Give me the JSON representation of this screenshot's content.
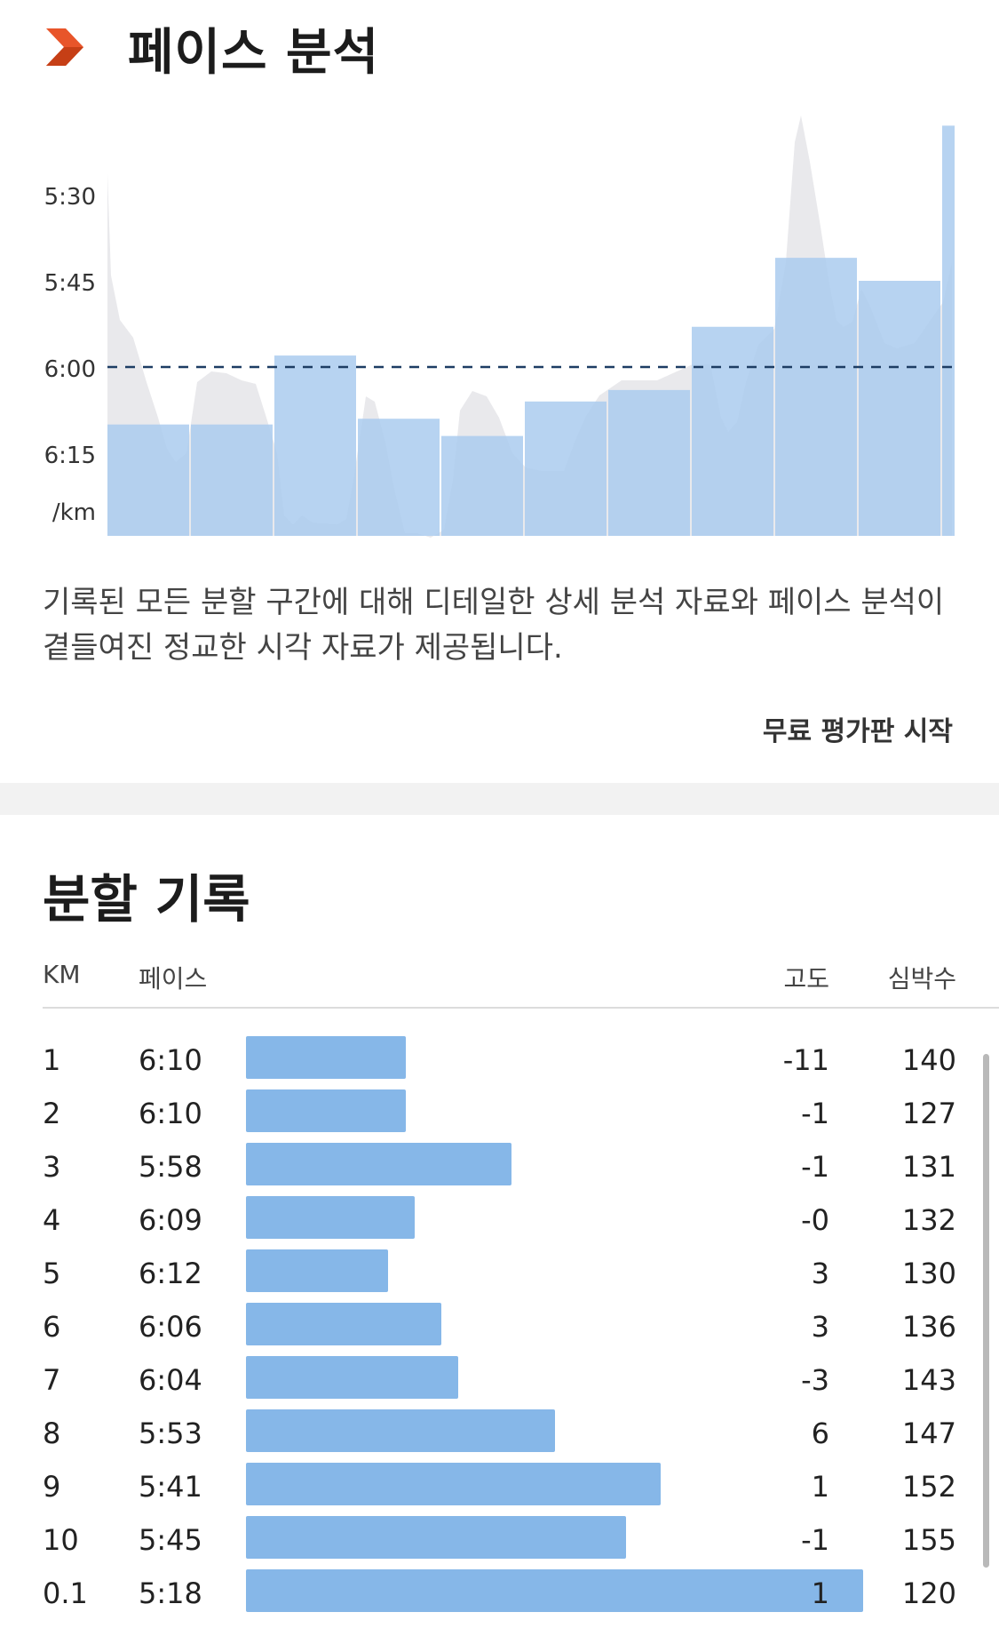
{
  "header": {
    "title": "페이스 분석",
    "brand_color": "#e8552a"
  },
  "chart_data": {
    "type": "bar",
    "ylabel": "/km",
    "y_ticks": [
      "5:30",
      "5:45",
      "6:00",
      "6:15"
    ],
    "ylim_seconds": [
      320,
      395
    ],
    "reference_line": {
      "label": "6:00",
      "seconds": 360
    },
    "categories": [
      "1",
      "2",
      "3",
      "4",
      "5",
      "6",
      "7",
      "8",
      "9",
      "10",
      "0.1"
    ],
    "pace_seconds": [
      370,
      370,
      358,
      369,
      372,
      366,
      364,
      353,
      341,
      345,
      318
    ],
    "bar_color": "#aacbef",
    "elevation_area_color": "#e9e9ec"
  },
  "description": "기록된 모든 분할 구간에 대해 디테일한 상세 분석 자료와 페이스 분석이 곁들여진 정교한 시각 자료가 제공됩니다.",
  "trial_link": "무료 평가판 시작",
  "splits": {
    "title": "분할 기록",
    "headers": {
      "km": "KM",
      "pace": "페이스",
      "elevation": "고도",
      "heart_rate": "심박수"
    },
    "bar_color": "#86b7e8",
    "rows": [
      {
        "km": "1",
        "pace": "6:10",
        "pace_seconds": 370,
        "elev": "-11",
        "hr": "140"
      },
      {
        "km": "2",
        "pace": "6:10",
        "pace_seconds": 370,
        "elev": "-1",
        "hr": "127"
      },
      {
        "km": "3",
        "pace": "5:58",
        "pace_seconds": 358,
        "elev": "-1",
        "hr": "131"
      },
      {
        "km": "4",
        "pace": "6:09",
        "pace_seconds": 369,
        "elev": "-0",
        "hr": "132"
      },
      {
        "km": "5",
        "pace": "6:12",
        "pace_seconds": 372,
        "elev": "3",
        "hr": "130"
      },
      {
        "km": "6",
        "pace": "6:06",
        "pace_seconds": 366,
        "elev": "3",
        "hr": "136"
      },
      {
        "km": "7",
        "pace": "6:04",
        "pace_seconds": 364,
        "elev": "-3",
        "hr": "143"
      },
      {
        "km": "8",
        "pace": "5:53",
        "pace_seconds": 353,
        "elev": "6",
        "hr": "147"
      },
      {
        "km": "9",
        "pace": "5:41",
        "pace_seconds": 341,
        "elev": "1",
        "hr": "152"
      },
      {
        "km": "10",
        "pace": "5:45",
        "pace_seconds": 345,
        "elev": "-1",
        "hr": "155"
      },
      {
        "km": "0.1",
        "pace": "5:18",
        "pace_seconds": 318,
        "elev": "1",
        "hr": "120"
      }
    ]
  }
}
